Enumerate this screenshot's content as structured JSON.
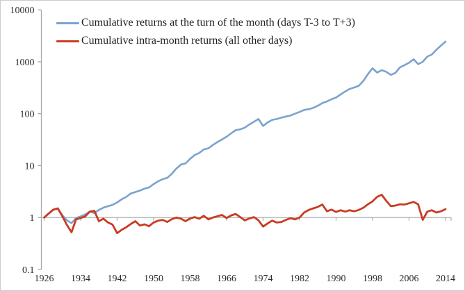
{
  "figure": {
    "background": "#ffffff",
    "border_color": "#cccccc"
  },
  "legend": {
    "position": "top-left-inside",
    "items": [
      {
        "label": "Cumulative returns at the turn of the month (days T-3 to T+3)",
        "color": "#7aa3cd"
      },
      {
        "label": "Cumulative intra-month returns (all other days)",
        "color": "#c93b22"
      }
    ]
  },
  "chart_data": {
    "type": "line",
    "title": "",
    "xlabel": "",
    "ylabel": "",
    "x_axis": {
      "range": [
        1926,
        2015
      ],
      "ticks": [
        1926,
        1934,
        1942,
        1950,
        1958,
        1966,
        1974,
        1982,
        1990,
        1998,
        2006,
        2014
      ],
      "grid": false
    },
    "y_axis": {
      "scale": "log",
      "range": [
        0.1,
        10000
      ],
      "ticks": [
        10000,
        1000,
        100,
        10,
        1,
        0.1
      ],
      "grid": false
    },
    "axis_cross_value": 1,
    "axis_color": "#a6a6a6",
    "label_color": "#2b2b2b",
    "label_font_size": 14,
    "years": [
      1926,
      1927,
      1928,
      1929,
      1930,
      1931,
      1932,
      1933,
      1934,
      1935,
      1936,
      1937,
      1938,
      1939,
      1940,
      1941,
      1942,
      1943,
      1944,
      1945,
      1946,
      1947,
      1948,
      1949,
      1950,
      1951,
      1952,
      1953,
      1954,
      1955,
      1956,
      1957,
      1958,
      1959,
      1960,
      1961,
      1962,
      1963,
      1964,
      1965,
      1966,
      1967,
      1968,
      1969,
      1970,
      1971,
      1972,
      1973,
      1974,
      1975,
      1976,
      1977,
      1978,
      1979,
      1980,
      1981,
      1982,
      1983,
      1984,
      1985,
      1986,
      1987,
      1988,
      1989,
      1990,
      1991,
      1992,
      1993,
      1994,
      1995,
      1996,
      1997,
      1998,
      1999,
      2000,
      2001,
      2002,
      2003,
      2004,
      2005,
      2006,
      2007,
      2008,
      2009,
      2010,
      2011,
      2012,
      2013,
      2014
    ],
    "series": [
      {
        "name": "Cumulative returns at the turn of the month (days T-3 to T+3)",
        "color": "#7aa3cd",
        "stroke_width": 2.6,
        "values": [
          1.0,
          1.18,
          1.4,
          1.48,
          1.1,
          0.88,
          0.78,
          0.98,
          1.05,
          1.15,
          1.3,
          1.22,
          1.4,
          1.55,
          1.65,
          1.75,
          1.95,
          2.25,
          2.5,
          2.9,
          3.1,
          3.3,
          3.6,
          3.8,
          4.4,
          5.0,
          5.5,
          5.8,
          7.0,
          8.8,
          10.5,
          11.0,
          13.5,
          16.0,
          17.5,
          20.5,
          21.5,
          25.0,
          28.5,
          32.0,
          36.0,
          42.0,
          48.0,
          50.0,
          54.0,
          62.0,
          70.0,
          79.0,
          58.0,
          68.0,
          76.0,
          79.0,
          84.0,
          88.0,
          92.0,
          100,
          108,
          118,
          122,
          130,
          142,
          160,
          172,
          190,
          205,
          235,
          268,
          300,
          320,
          345,
          430,
          580,
          750,
          620,
          690,
          640,
          560,
          610,
          780,
          860,
          960,
          1120,
          900,
          1000,
          1260,
          1380,
          1700,
          2050,
          2450
        ]
      },
      {
        "name": "Cumulative intra-month returns (all other days)",
        "color": "#c93b22",
        "stroke_width": 2.8,
        "values": [
          1.0,
          1.2,
          1.42,
          1.5,
          1.05,
          0.72,
          0.52,
          0.92,
          0.98,
          1.05,
          1.3,
          1.35,
          0.85,
          0.95,
          0.8,
          0.73,
          0.5,
          0.58,
          0.65,
          0.75,
          0.85,
          0.7,
          0.74,
          0.68,
          0.8,
          0.87,
          0.9,
          0.82,
          0.93,
          1.0,
          0.95,
          0.85,
          0.96,
          1.02,
          0.95,
          1.08,
          0.92,
          1.0,
          1.06,
          1.12,
          0.98,
          1.1,
          1.17,
          1.02,
          0.88,
          0.96,
          1.02,
          0.88,
          0.67,
          0.77,
          0.87,
          0.8,
          0.82,
          0.9,
          0.97,
          0.92,
          1.0,
          1.25,
          1.4,
          1.5,
          1.6,
          1.78,
          1.32,
          1.42,
          1.28,
          1.38,
          1.3,
          1.38,
          1.32,
          1.4,
          1.55,
          1.8,
          2.05,
          2.5,
          2.75,
          2.1,
          1.65,
          1.7,
          1.8,
          1.78,
          1.88,
          2.0,
          1.8,
          0.9,
          1.3,
          1.38,
          1.25,
          1.32,
          1.45
        ]
      }
    ]
  }
}
